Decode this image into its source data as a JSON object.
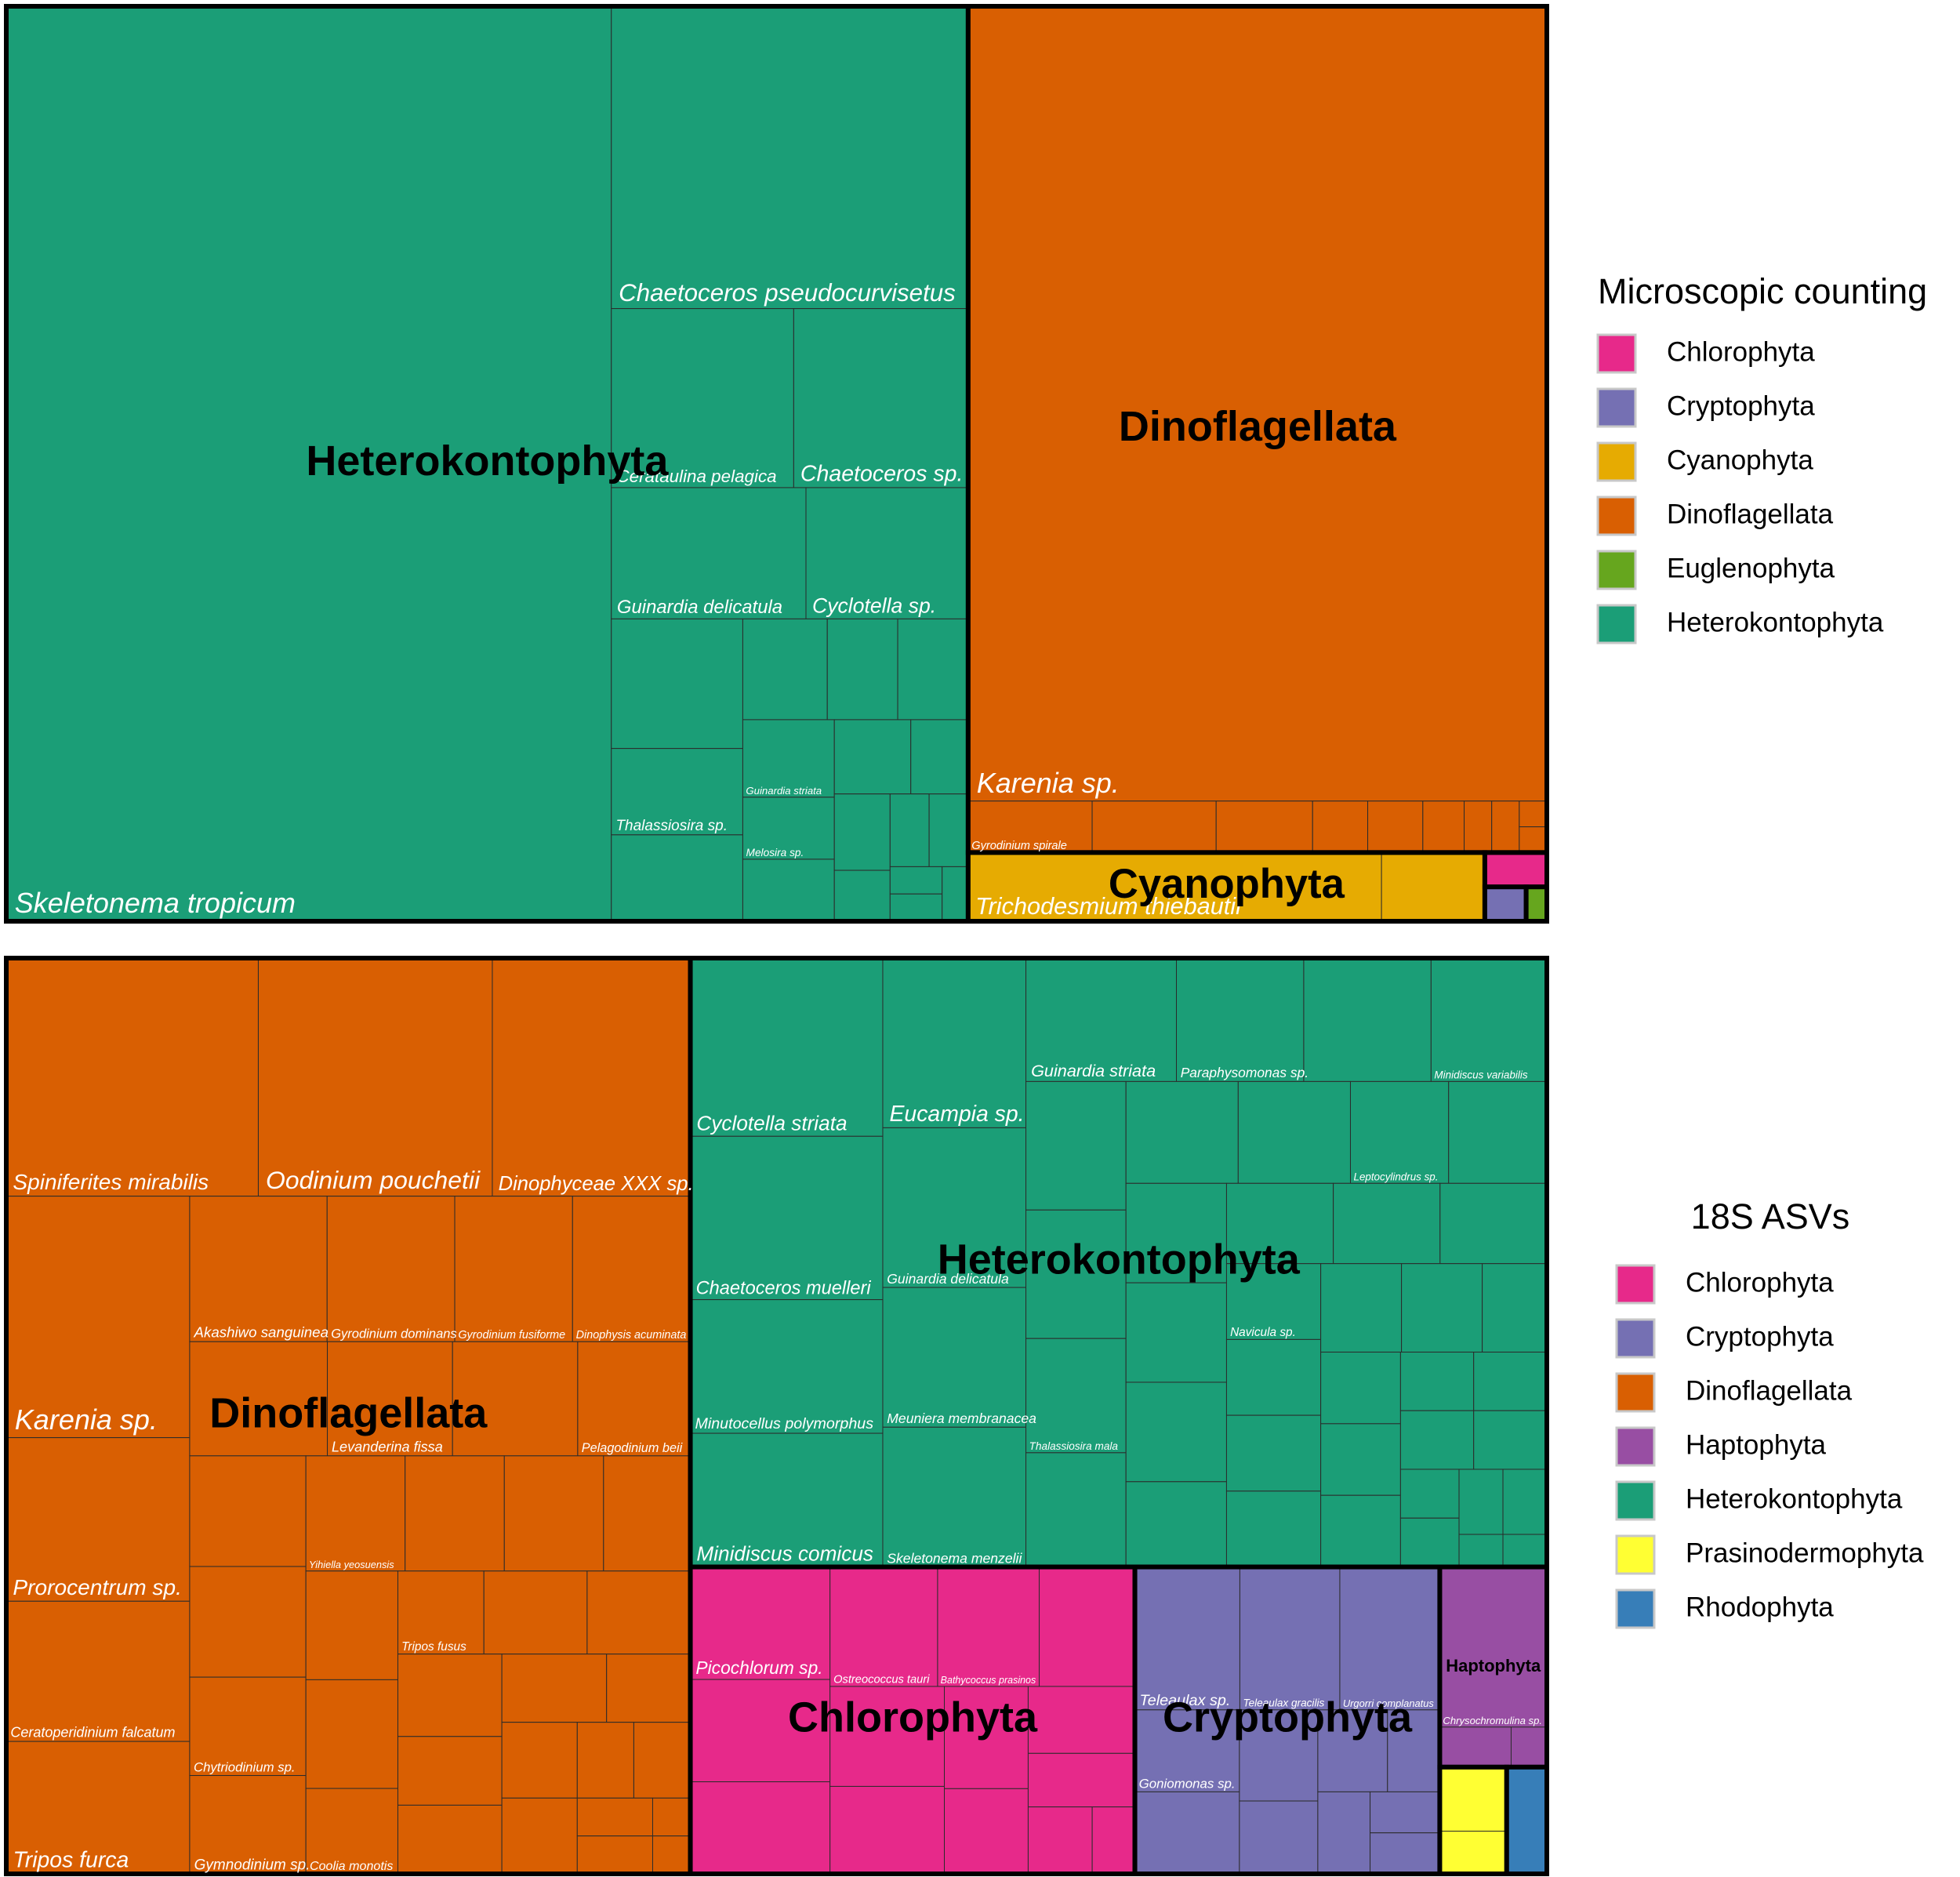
{
  "chart_data": [
    {
      "type": "treemap",
      "legend_title": "Microscopic counting",
      "series": [
        {
          "name": "Heterokontophyta",
          "color": "#1b9e77",
          "labels": [
            "Skeletonema tropicum",
            "Chaetoceros pseudocurvisetus",
            "Cerataulina pelagica",
            "Chaetoceros sp.",
            "Guinardia delicatula",
            "Cyclotella sp.",
            null,
            "Thalassiosira sp.",
            null,
            null,
            null,
            null,
            "Guinardia striata",
            "Melosira sp.",
            null,
            null,
            null,
            null,
            null,
            null,
            null,
            null,
            null,
            null
          ],
          "values": [
            39,
            7.6,
            2.3,
            2.2,
            1.8,
            1.5,
            1.2,
            0.8,
            0.8,
            0.6,
            0.5,
            0.5,
            0.5,
            0.4,
            0.4,
            0.4,
            0.3,
            0.3,
            0.2,
            0.2,
            0.2,
            0.1,
            0.1,
            0.1
          ]
        },
        {
          "name": "Dinoflagellata",
          "color": "#d95f02",
          "labels": [
            "Karenia sp.",
            "Gyrodinium spirale",
            null,
            null,
            null,
            null,
            null,
            null,
            null,
            null,
            null
          ],
          "values": [
            32.4,
            0.45,
            0.45,
            0.35,
            0.2,
            0.2,
            0.15,
            0.1,
            0.1,
            0.05,
            0.05
          ]
        },
        {
          "name": "Cyanophyta",
          "color": "#e6ab02",
          "labels": [
            "Trichodesmium thiebautii",
            null
          ],
          "values": [
            2.0,
            0.5
          ]
        },
        {
          "name": "Chlorophyta",
          "color": "#e7298a",
          "labels": [
            null
          ],
          "values": [
            0.15
          ]
        },
        {
          "name": "Cryptophyta",
          "color": "#7570b3",
          "labels": [
            null
          ],
          "values": [
            0.1
          ]
        },
        {
          "name": "Euglenophyta",
          "color": "#66a61e",
          "labels": [
            null
          ],
          "values": [
            0.05
          ]
        }
      ]
    },
    {
      "type": "treemap",
      "legend_title": "18S ASVs",
      "series": [
        {
          "name": "Dinoflagellata",
          "color": "#d95f02",
          "labels": [
            "Spiniferites mirabilis",
            "Oodinium pouchetii",
            "Dinophyceae XXX sp.",
            "Karenia sp.",
            "Prorocentrum sp.",
            "Ceratoperidinium falcatum",
            "Tripos furca",
            "Akashiwo sanguinea",
            "Gyrodinium dominans",
            "Gyrodinium fusiforme",
            "Dinophysis acuminata",
            null,
            "Levanderina fissa",
            null,
            "Pelagodinium beii",
            null,
            null,
            "Chytriodinium sp.",
            "Gymnodinium sp.",
            "Yihiella yeosuensis",
            null,
            null,
            null,
            null,
            null,
            "Coolia monotis",
            "Tripos fusus",
            null,
            null,
            null,
            null,
            null,
            null,
            null,
            null,
            null,
            null,
            null,
            null,
            null,
            null,
            null
          ],
          "values": [
            4.2,
            3.9,
            3.3,
            3.1,
            2.1,
            1.8,
            1.7,
            1.4,
            1.3,
            1.2,
            1.2,
            1.1,
            1.0,
            1.0,
            0.9,
            0.9,
            0.9,
            0.8,
            0.8,
            0.8,
            0.8,
            0.8,
            0.7,
            0.7,
            0.7,
            0.55,
            0.5,
            0.6,
            0.6,
            0.6,
            0.5,
            0.5,
            0.5,
            0.4,
            0.4,
            0.4,
            0.3,
            0.3,
            0.2,
            0.2,
            0.1,
            0.1
          ]
        },
        {
          "name": "Heterokontophyta",
          "color": "#1b9e77",
          "labels": [
            "Cyclotella striata",
            "Chaetoceros muelleri",
            "Minutocellus polymorphus",
            "Minidiscus comicus",
            "Eucampia sp.",
            "Guinardia delicatula",
            "Meuniera membranacea",
            "Skeletonema menzelii",
            "Guinardia striata",
            "Paraphysomonas sp.",
            null,
            "Minidiscus variabilis",
            null,
            null,
            "Thalassiosira mala",
            null,
            null,
            null,
            "Leptocylindrus sp.",
            null,
            null,
            null,
            null,
            null,
            null,
            null,
            null,
            "Navicula sp.",
            null,
            null,
            null,
            null,
            null,
            null,
            null,
            null,
            null,
            null,
            null,
            null,
            null,
            null,
            null,
            null,
            null,
            null,
            null
          ],
          "values": [
            2.4,
            2.2,
            1.8,
            1.8,
            1.7,
            1.6,
            1.4,
            1.4,
            1.3,
            1.1,
            1.1,
            1.0,
            0.9,
            0.9,
            0.8,
            0.8,
            0.8,
            0.8,
            0.7,
            0.7,
            0.7,
            0.7,
            0.7,
            0.6,
            0.6,
            0.6,
            0.6,
            0.5,
            0.5,
            0.5,
            0.5,
            0.5,
            0.5,
            0.4,
            0.4,
            0.4,
            0.4,
            0.3,
            0.3,
            0.3,
            0.3,
            0.2,
            0.2,
            0.2,
            0.2,
            0.1,
            0.1
          ]
        },
        {
          "name": "Chlorophyta",
          "color": "#e7298a",
          "labels": [
            "Picochlorum sp.",
            null,
            null,
            "Ostreococcus tauri",
            "Bathycoccus prasinos",
            null,
            null,
            null,
            null,
            null,
            null,
            null,
            null,
            null
          ],
          "values": [
            1.1,
            1.0,
            0.9,
            0.9,
            0.85,
            0.8,
            0.8,
            0.7,
            0.6,
            0.5,
            0.5,
            0.4,
            0.3,
            0.2
          ]
        },
        {
          "name": "Cryptophyta",
          "color": "#7570b3",
          "labels": [
            "Teleaulax sp.",
            "Teleaulax gracilis",
            "Urgorri complanatus",
            "Goniomonas sp.",
            null,
            null,
            null,
            null,
            null,
            null,
            null,
            null
          ],
          "values": [
            1.05,
            1.0,
            1.0,
            0.6,
            0.6,
            0.5,
            0.4,
            0.4,
            0.3,
            0.3,
            0.2,
            0.2
          ]
        },
        {
          "name": "Haptophyta",
          "color": "#984ea3",
          "labels": [
            "Chrysochromulina sp.",
            null,
            null
          ],
          "values": [
            1.2,
            0.2,
            0.1
          ]
        },
        {
          "name": "Prasinodermophyta",
          "color": "#ffff33",
          "labels": [
            null,
            null
          ],
          "values": [
            0.3,
            0.2
          ]
        },
        {
          "name": "Rhodophyta",
          "color": "#377eb8",
          "labels": [
            null
          ],
          "values": [
            0.3
          ]
        }
      ]
    }
  ]
}
